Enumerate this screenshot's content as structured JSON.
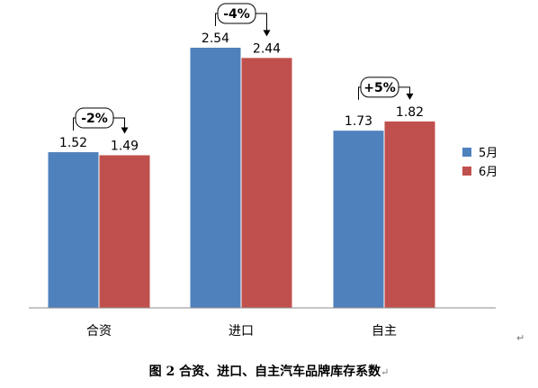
{
  "chart_data": {
    "type": "bar",
    "title": "图 2  合资、进口、自主汽车品牌库存系数",
    "categories": [
      "合资",
      "进口",
      "自主"
    ],
    "series": [
      {
        "name": "5月",
        "values": [
          1.52,
          2.54,
          1.73
        ],
        "color": "#4F81BD"
      },
      {
        "name": "6月",
        "values": [
          1.49,
          2.44,
          1.82
        ],
        "color": "#C0504D"
      }
    ],
    "changes": [
      "-2%",
      "-4%",
      "+5%"
    ],
    "ylim": [
      0,
      2.54
    ],
    "grid": false,
    "legend_position": "right"
  },
  "caption": {
    "text": "图 2  合资、进口、自主汽车品牌库存系数",
    "mark": "↵"
  },
  "paragraph_mark": "↵"
}
